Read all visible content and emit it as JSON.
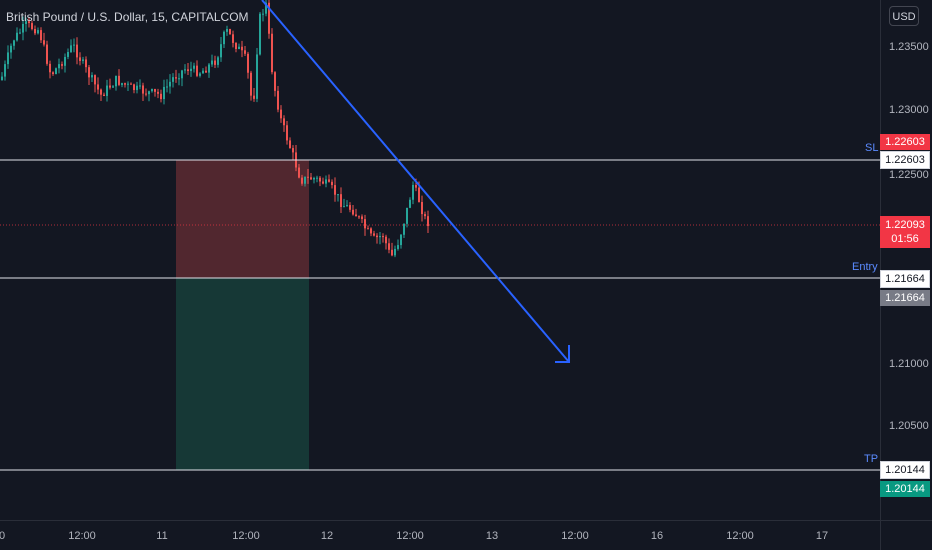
{
  "symbol": {
    "title": "British Pound / U.S. Dollar, 15, CAPITALCOM"
  },
  "currency": "USD",
  "price_axis": {
    "ticks": [
      "1.23500",
      "1.23000",
      "1.22500",
      "1.21000",
      "1.20500"
    ]
  },
  "time_axis": {
    "ticks": [
      "0",
      "12:00",
      "11",
      "12:00",
      "12",
      "12:00",
      "13",
      "12:00",
      "16",
      "12:00",
      "17"
    ]
  },
  "levels": {
    "sl": {
      "label": "SL",
      "price": "1.22603",
      "price_label_red": "1.22603"
    },
    "entry": {
      "label": "Entry",
      "price": "1.21664",
      "price_label_grey": "1.21664"
    },
    "tp": {
      "label": "TP",
      "price": "1.20144",
      "price_label_green": "1.20144"
    },
    "current": {
      "price": "1.22093",
      "countdown": "01:56"
    }
  },
  "colors": {
    "background": "#131722",
    "up_candle": "#26a69a",
    "down_candle": "#ef5350",
    "trend_arrow": "#2962ff",
    "risk_zone": "#5d2a31",
    "reward_zone": "#163a38",
    "sl_badge": "#f23645",
    "tp_badge": "#089981",
    "entry_badge": "#787b86"
  },
  "icons": {
    "trend_arrow": "down-right-arrow-icon"
  }
}
